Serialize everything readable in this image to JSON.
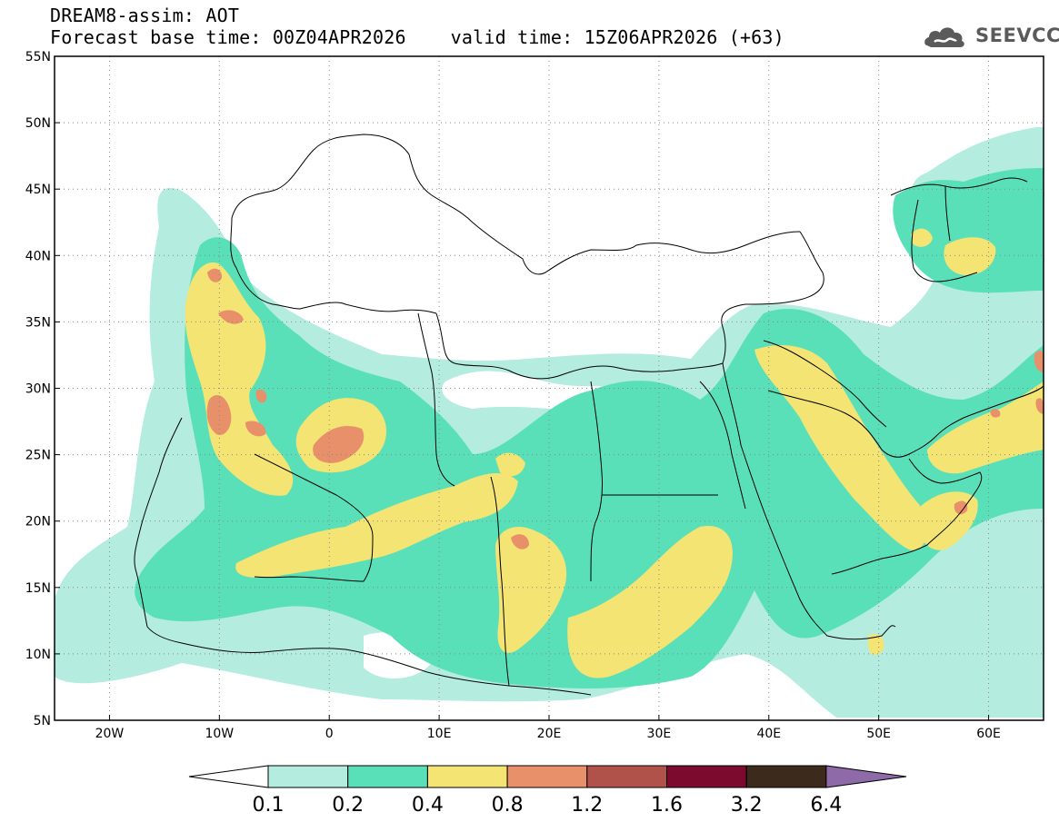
{
  "header": {
    "title": "DREAM8-assim: AOT",
    "subtitle": "Forecast base time: 00Z04APR2026    valid time: 15Z06APR2026 (+63)"
  },
  "logo": {
    "text": "SEEVCCC",
    "icon": "cloud-icon"
  },
  "map": {
    "projection": "lat-lon",
    "lon_range": [
      -25,
      65
    ],
    "lat_range": [
      5,
      55
    ],
    "grid": true,
    "lat_labels": [
      "5N",
      "10N",
      "15N",
      "20N",
      "25N",
      "30N",
      "35N",
      "40N",
      "45N",
      "50N",
      "55N"
    ],
    "lon_labels": [
      "20W",
      "10W",
      "0",
      "10E",
      "20E",
      "30E",
      "40E",
      "50E",
      "60E"
    ],
    "lat_values": [
      5,
      10,
      15,
      20,
      25,
      30,
      35,
      40,
      45,
      50,
      55
    ],
    "lon_values": [
      -20,
      -10,
      0,
      10,
      20,
      30,
      40,
      50,
      60
    ]
  },
  "colorbar": {
    "levels": [
      "0.1",
      "0.2",
      "0.4",
      "0.8",
      "1.2",
      "1.6",
      "3.2",
      "6.4"
    ],
    "colors": [
      "#ffffff",
      "#b4ece0",
      "#5ae0b8",
      "#f3e474",
      "#e8906a",
      "#b0524a",
      "#7c0a2e",
      "#3c2a1c",
      "#8e6aa8"
    ]
  }
}
